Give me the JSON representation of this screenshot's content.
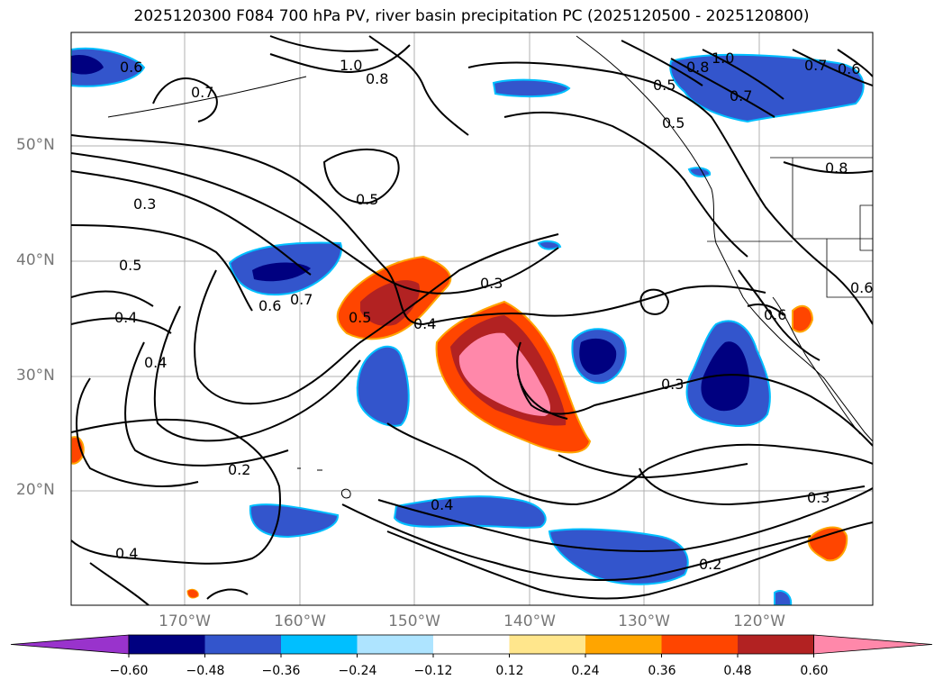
{
  "title": "2025120300 F084 700 hPa PV, river basin precipitation PC (2025120500 - 2025120800)",
  "lat_labels": [
    "50°N",
    "40°N",
    "30°N",
    "20°N"
  ],
  "lon_labels": [
    "170°W",
    "160°W",
    "150°W",
    "140°W",
    "130°W",
    "120°W"
  ],
  "colorbar": {
    "ticks": [
      "−0.60",
      "−0.48",
      "−0.36",
      "−0.24",
      "−0.12",
      "0.12",
      "0.24",
      "0.36",
      "0.48",
      "0.60"
    ],
    "colors": [
      "#9933cc",
      "#000080",
      "#3355cc",
      "#00bfff",
      "#aee4ff",
      "#ffffff",
      "#ffe68c",
      "#ffa500",
      "#ff4500",
      "#b22222",
      "#ff88aa"
    ]
  },
  "contour_labels": [
    "0.6",
    "1.0",
    "0.8",
    "0.7",
    "0.5",
    "0.8",
    "1.0",
    "0.7",
    "0.6",
    "0.5",
    "0.7",
    "0.8",
    "0.3",
    "0.5",
    "0.5",
    "0.6",
    "0.7",
    "0.4",
    "0.4",
    "0.5",
    "0.3",
    "0.4",
    "0.6",
    "0.6",
    "0.3",
    "0.2",
    "0.4",
    "0.3",
    "0.2",
    "0.4"
  ]
}
